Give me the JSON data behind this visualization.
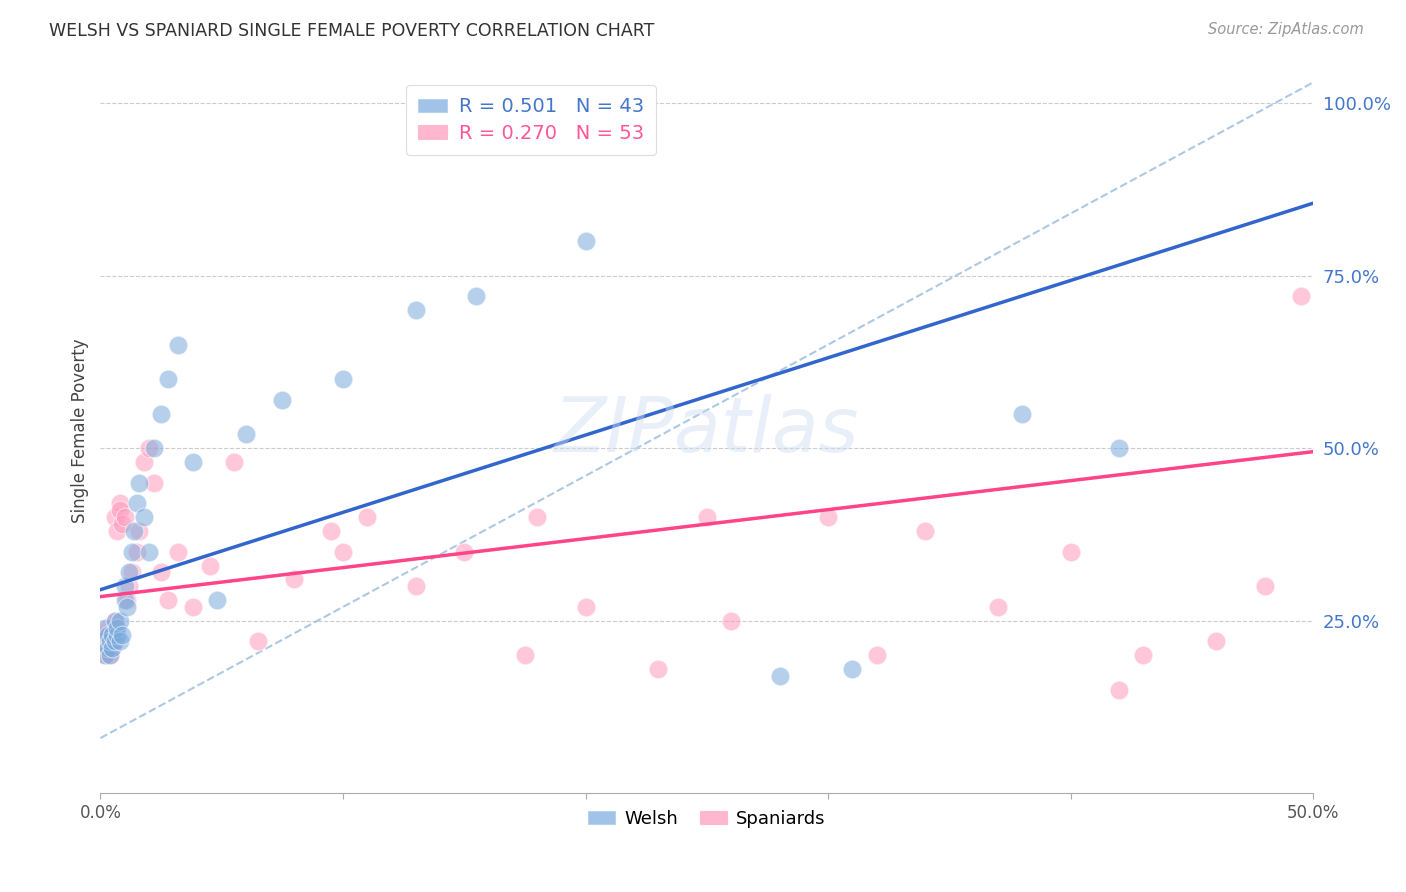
{
  "title": "WELSH VS SPANIARD SINGLE FEMALE POVERTY CORRELATION CHART",
  "source": "Source: ZipAtlas.com",
  "ylabel": "Single Female Poverty",
  "xlim": [
    0.0,
    0.5
  ],
  "ylim": [
    0.0,
    1.05
  ],
  "yticks": [
    0.25,
    0.5,
    0.75,
    1.0
  ],
  "ytick_labels": [
    "25.0%",
    "50.0%",
    "75.0%",
    "100.0%"
  ],
  "watermark_text": "ZIPatlas",
  "legend_entries": [
    {
      "label": "R = 0.501   N = 43",
      "color": "#4477cc"
    },
    {
      "label": "R = 0.270   N = 53",
      "color": "#ff5599"
    }
  ],
  "legend_group": [
    "Welsh",
    "Spaniards"
  ],
  "welsh_color": "#7aaadd",
  "spaniard_color": "#ff99bb",
  "blue_line_color": "#3366cc",
  "pink_line_color": "#ff4488",
  "dashed_line_color": "#99bbdd",
  "blue_line_x": [
    0.0,
    0.5
  ],
  "blue_line_y": [
    0.295,
    0.855
  ],
  "pink_line_x": [
    0.0,
    0.5
  ],
  "pink_line_y": [
    0.285,
    0.495
  ],
  "diag_line_x": [
    0.0,
    0.5
  ],
  "diag_line_y": [
    0.08,
    1.03
  ],
  "welsh_x": [
    0.001,
    0.002,
    0.002,
    0.003,
    0.003,
    0.004,
    0.004,
    0.005,
    0.005,
    0.006,
    0.006,
    0.007,
    0.007,
    0.008,
    0.008,
    0.009,
    0.01,
    0.01,
    0.011,
    0.012,
    0.013,
    0.014,
    0.015,
    0.016,
    0.018,
    0.02,
    0.022,
    0.025,
    0.028,
    0.032,
    0.038,
    0.048,
    0.06,
    0.075,
    0.1,
    0.13,
    0.155,
    0.2,
    0.22,
    0.28,
    0.31,
    0.38,
    0.42
  ],
  "welsh_y": [
    0.22,
    0.2,
    0.24,
    0.21,
    0.23,
    0.2,
    0.22,
    0.21,
    0.23,
    0.22,
    0.25,
    0.23,
    0.24,
    0.22,
    0.25,
    0.23,
    0.28,
    0.3,
    0.27,
    0.32,
    0.35,
    0.38,
    0.42,
    0.45,
    0.4,
    0.35,
    0.5,
    0.55,
    0.6,
    0.65,
    0.48,
    0.28,
    0.52,
    0.57,
    0.6,
    0.7,
    0.72,
    0.8,
    0.95,
    0.17,
    0.18,
    0.55,
    0.5
  ],
  "spaniard_x": [
    0.001,
    0.002,
    0.002,
    0.003,
    0.003,
    0.004,
    0.004,
    0.005,
    0.005,
    0.006,
    0.006,
    0.007,
    0.008,
    0.008,
    0.009,
    0.01,
    0.011,
    0.012,
    0.013,
    0.015,
    0.016,
    0.018,
    0.02,
    0.022,
    0.025,
    0.028,
    0.032,
    0.038,
    0.045,
    0.055,
    0.065,
    0.08,
    0.095,
    0.11,
    0.13,
    0.15,
    0.175,
    0.2,
    0.23,
    0.26,
    0.3,
    0.34,
    0.37,
    0.4,
    0.43,
    0.46,
    0.48,
    0.495,
    0.25,
    0.32,
    0.1,
    0.18,
    0.42
  ],
  "spaniard_y": [
    0.22,
    0.2,
    0.23,
    0.21,
    0.24,
    0.2,
    0.22,
    0.21,
    0.23,
    0.25,
    0.4,
    0.38,
    0.42,
    0.41,
    0.39,
    0.4,
    0.28,
    0.3,
    0.32,
    0.35,
    0.38,
    0.48,
    0.5,
    0.45,
    0.32,
    0.28,
    0.35,
    0.27,
    0.33,
    0.48,
    0.22,
    0.31,
    0.38,
    0.4,
    0.3,
    0.35,
    0.2,
    0.27,
    0.18,
    0.25,
    0.4,
    0.38,
    0.27,
    0.35,
    0.2,
    0.22,
    0.3,
    0.72,
    0.4,
    0.2,
    0.35,
    0.4,
    0.15
  ]
}
